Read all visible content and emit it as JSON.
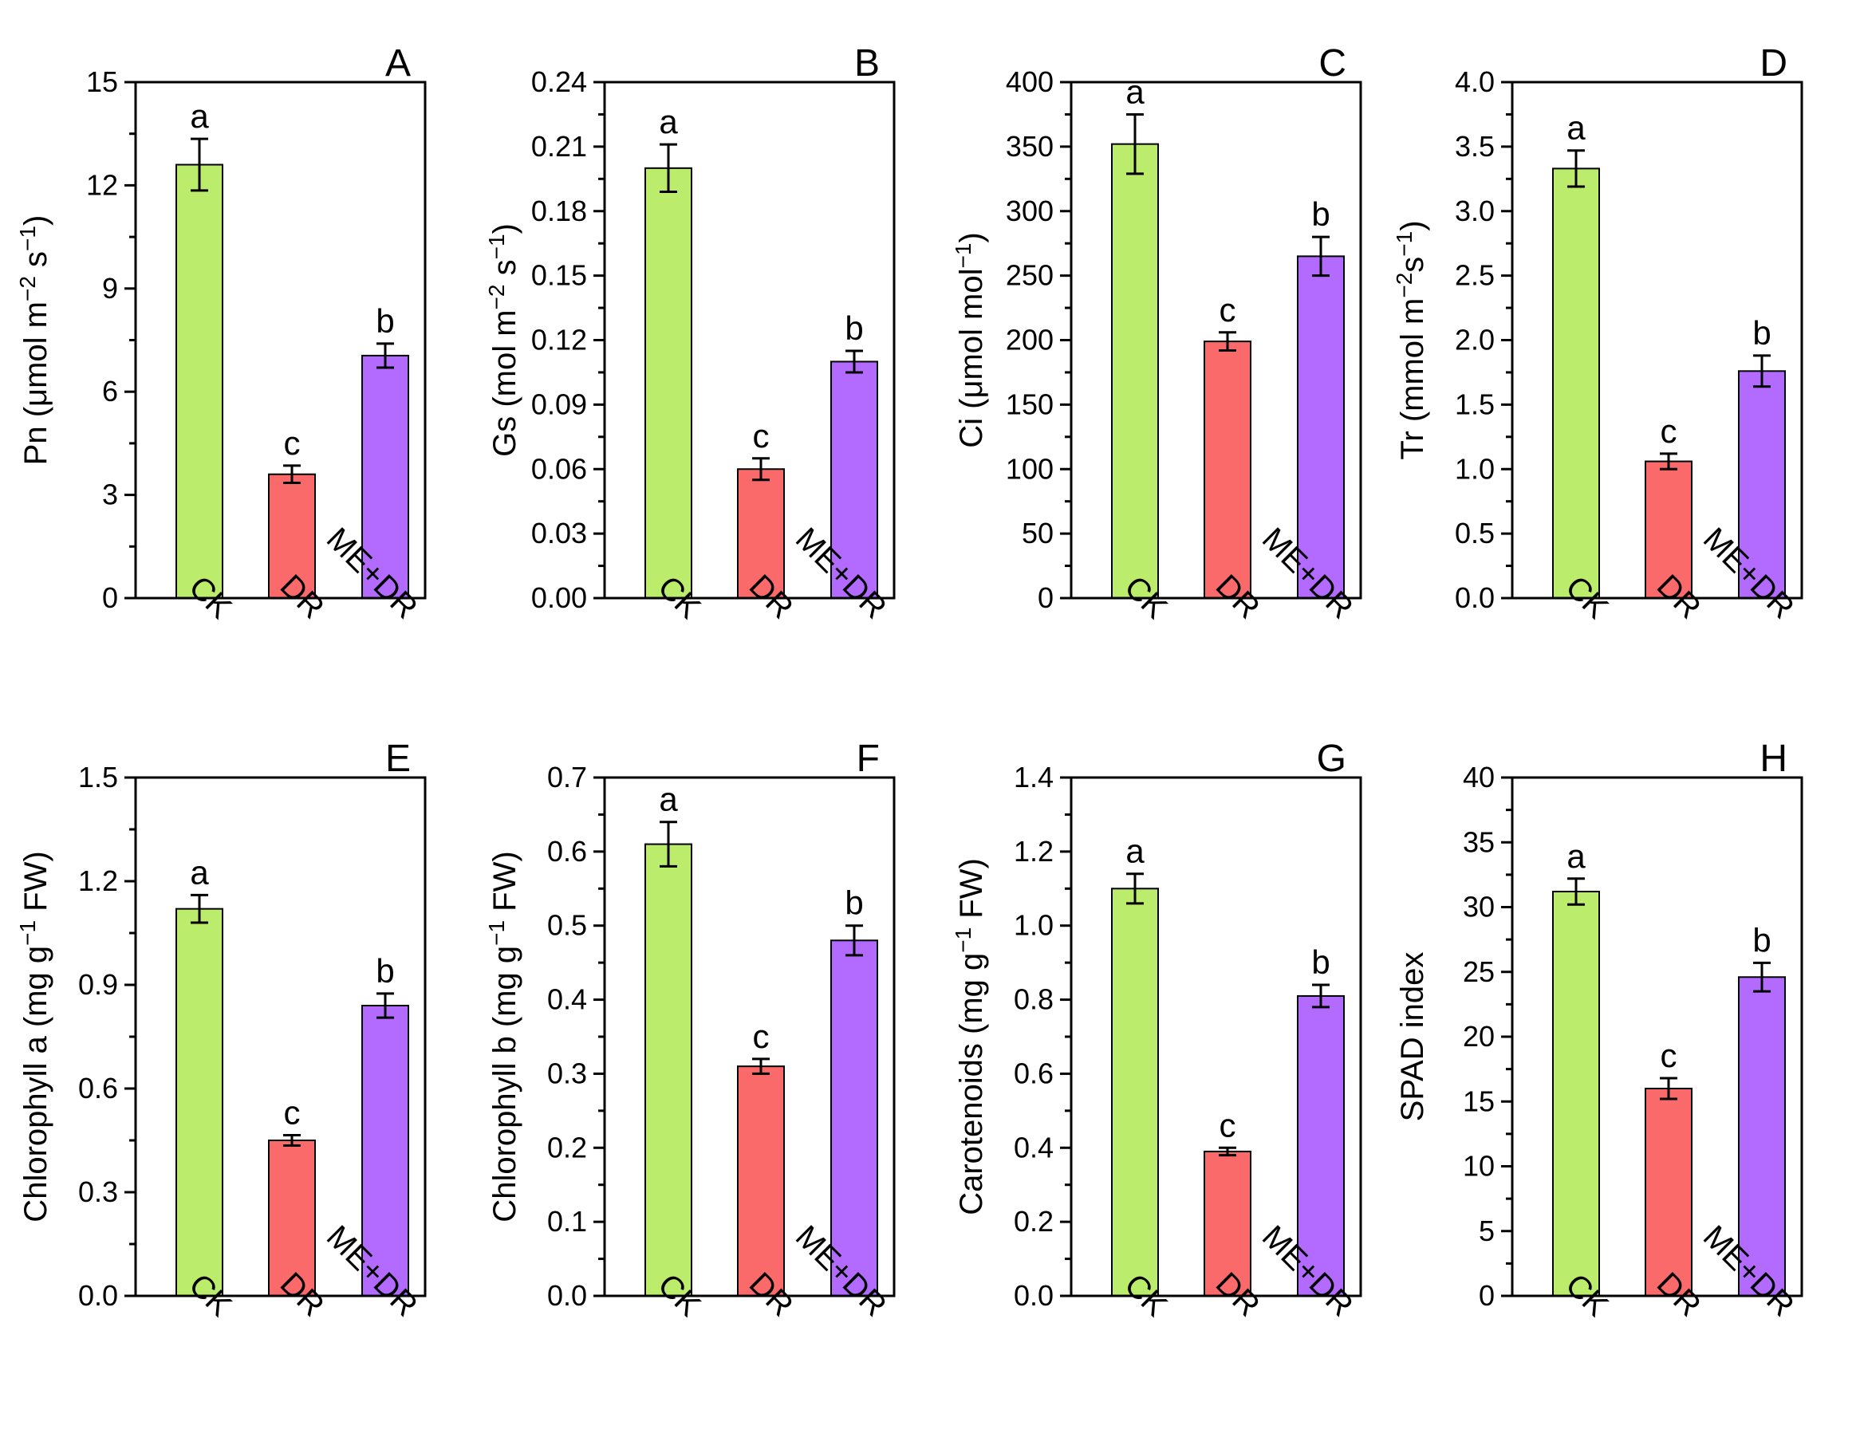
{
  "colors": {
    "CK": "#bbec6b",
    "DR": "#fb6a6a",
    "ME+DR": "#b36bff"
  },
  "chart_data": [
    {
      "type": "bar",
      "panel": "A",
      "categories": [
        "CK",
        "DR",
        "ME+DR"
      ],
      "values": [
        12.6,
        3.6,
        7.05
      ],
      "errors": [
        0.75,
        0.25,
        0.35
      ],
      "significance": [
        "a",
        "c",
        "b"
      ],
      "ylabel_parts": [
        [
          "Pn (μmol m",
          false
        ],
        [
          "−2",
          true
        ],
        [
          " s",
          false
        ],
        [
          "−1",
          true
        ],
        [
          ")",
          false
        ]
      ],
      "ylim": [
        0,
        15
      ],
      "yticks": [
        "0",
        "3",
        "6",
        "9",
        "12",
        "15"
      ]
    },
    {
      "type": "bar",
      "panel": "B",
      "categories": [
        "CK",
        "DR",
        "ME+DR"
      ],
      "values": [
        0.2,
        0.06,
        0.11
      ],
      "errors": [
        0.011,
        0.005,
        0.005
      ],
      "significance": [
        "a",
        "c",
        "b"
      ],
      "ylabel_parts": [
        [
          "Gs (mol m",
          false
        ],
        [
          "−2",
          true
        ],
        [
          " s",
          false
        ],
        [
          "−1",
          true
        ],
        [
          ")",
          false
        ]
      ],
      "ylim": [
        0,
        0.24
      ],
      "yticks": [
        "0.00",
        "0.03",
        "0.06",
        "0.09",
        "0.12",
        "0.15",
        "0.18",
        "0.21",
        "0.24"
      ]
    },
    {
      "type": "bar",
      "panel": "C",
      "categories": [
        "CK",
        "DR",
        "ME+DR"
      ],
      "values": [
        352,
        199,
        265
      ],
      "errors": [
        23,
        7,
        15
      ],
      "significance": [
        "a",
        "c",
        "b"
      ],
      "ylabel_parts": [
        [
          "Ci (μmol mol",
          false
        ],
        [
          "−1",
          true
        ],
        [
          ")",
          false
        ]
      ],
      "ylim": [
        0,
        400
      ],
      "yticks": [
        "0",
        "50",
        "100",
        "150",
        "200",
        "250",
        "300",
        "350",
        "400"
      ]
    },
    {
      "type": "bar",
      "panel": "D",
      "categories": [
        "CK",
        "DR",
        "ME+DR"
      ],
      "values": [
        3.33,
        1.06,
        1.76
      ],
      "errors": [
        0.14,
        0.06,
        0.12
      ],
      "significance": [
        "a",
        "c",
        "b"
      ],
      "ylabel_parts": [
        [
          "Tr (mmol m",
          false
        ],
        [
          "−2",
          true
        ],
        [
          "s",
          false
        ],
        [
          "−1",
          true
        ],
        [
          ")",
          false
        ]
      ],
      "ylim": [
        0,
        4.0
      ],
      "yticks": [
        "0.0",
        "0.5",
        "1.0",
        "1.5",
        "2.0",
        "2.5",
        "3.0",
        "3.5",
        "4.0"
      ]
    },
    {
      "type": "bar",
      "panel": "E",
      "categories": [
        "CK",
        "DR",
        "ME+DR"
      ],
      "values": [
        1.12,
        0.45,
        0.84
      ],
      "errors": [
        0.04,
        0.015,
        0.035
      ],
      "significance": [
        "a",
        "c",
        "b"
      ],
      "ylabel_parts": [
        [
          "Chlorophyll a (mg g",
          false
        ],
        [
          "−1",
          true
        ],
        [
          " FW)",
          false
        ]
      ],
      "ylim": [
        0,
        1.5
      ],
      "yticks": [
        "0.0",
        "0.3",
        "0.6",
        "0.9",
        "1.2",
        "1.5"
      ]
    },
    {
      "type": "bar",
      "panel": "F",
      "categories": [
        "CK",
        "DR",
        "ME+DR"
      ],
      "values": [
        0.61,
        0.31,
        0.48
      ],
      "errors": [
        0.03,
        0.01,
        0.02
      ],
      "significance": [
        "a",
        "c",
        "b"
      ],
      "ylabel_parts": [
        [
          "Chlorophyll b (mg g",
          false
        ],
        [
          "−1",
          true
        ],
        [
          " FW)",
          false
        ]
      ],
      "ylim": [
        0,
        0.7
      ],
      "yticks": [
        "0.0",
        "0.1",
        "0.2",
        "0.3",
        "0.4",
        "0.5",
        "0.6",
        "0.7"
      ]
    },
    {
      "type": "bar",
      "panel": "G",
      "categories": [
        "CK",
        "DR",
        "ME+DR"
      ],
      "values": [
        1.1,
        0.39,
        0.81
      ],
      "errors": [
        0.04,
        0.01,
        0.03
      ],
      "significance": [
        "a",
        "c",
        "b"
      ],
      "ylabel_parts": [
        [
          "Carotenoids (mg g",
          false
        ],
        [
          "−1",
          true
        ],
        [
          " FW)",
          false
        ]
      ],
      "ylim": [
        0,
        1.4
      ],
      "yticks": [
        "0.0",
        "0.2",
        "0.4",
        "0.6",
        "0.8",
        "1.0",
        "1.2",
        "1.4"
      ]
    },
    {
      "type": "bar",
      "panel": "H",
      "categories": [
        "CK",
        "DR",
        "ME+DR"
      ],
      "values": [
        31.2,
        16.0,
        24.6
      ],
      "errors": [
        1.0,
        0.8,
        1.1
      ],
      "significance": [
        "a",
        "c",
        "b"
      ],
      "ylabel_parts": [
        [
          "SPAD index",
          false
        ]
      ],
      "ylim": [
        0,
        40
      ],
      "yticks": [
        "0",
        "5",
        "10",
        "15",
        "20",
        "25",
        "30",
        "35",
        "40"
      ]
    }
  ]
}
